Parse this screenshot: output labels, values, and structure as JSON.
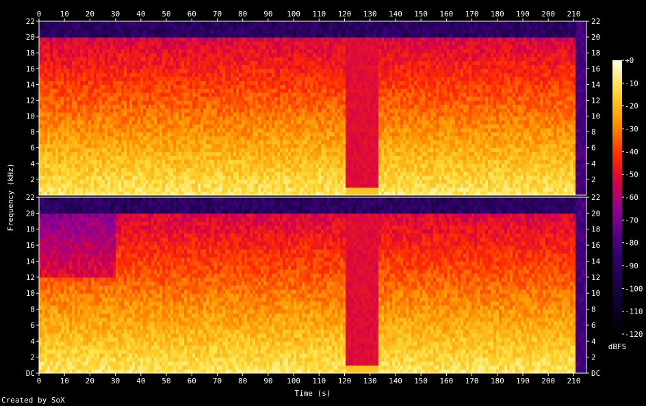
{
  "chart_data": {
    "type": "heatmap",
    "xlabel": "Time (s)",
    "ylabel": "Frequency (kHz)",
    "x_ticks": [
      "0",
      "10",
      "20",
      "30",
      "40",
      "50",
      "60",
      "70",
      "80",
      "90",
      "100",
      "110",
      "120",
      "130",
      "140",
      "150",
      "160",
      "170",
      "180",
      "190",
      "200",
      "210"
    ],
    "y_ticks": [
      "DC",
      "2",
      "4",
      "6",
      "8",
      "10",
      "12",
      "14",
      "16",
      "18",
      "20",
      "22"
    ],
    "y_ticks_top_panel": [
      "2",
      "4",
      "6",
      "8",
      "10",
      "12",
      "14",
      "16",
      "18",
      "20",
      "22"
    ],
    "xlim": [
      0,
      215
    ],
    "ylim_khz": [
      0,
      22
    ],
    "colorbar": {
      "label": "dBFS",
      "ticks": [
        "+0",
        "-10",
        "-20",
        "-30",
        "-40",
        "-50",
        "-60",
        "-70",
        "-80",
        "-90",
        "-100",
        "-110",
        "-120"
      ],
      "range": [
        -120,
        0
      ]
    },
    "channels": 2,
    "lowpass_cutoff_khz": 20,
    "quiet_sections_s": [
      [
        120,
        133
      ]
    ],
    "colors": {
      "background": "#000000",
      "low": "#1a0036",
      "mid": "#e0003c",
      "high": "#ffffa0"
    }
  },
  "footer": {
    "credit": "Created by SoX"
  }
}
